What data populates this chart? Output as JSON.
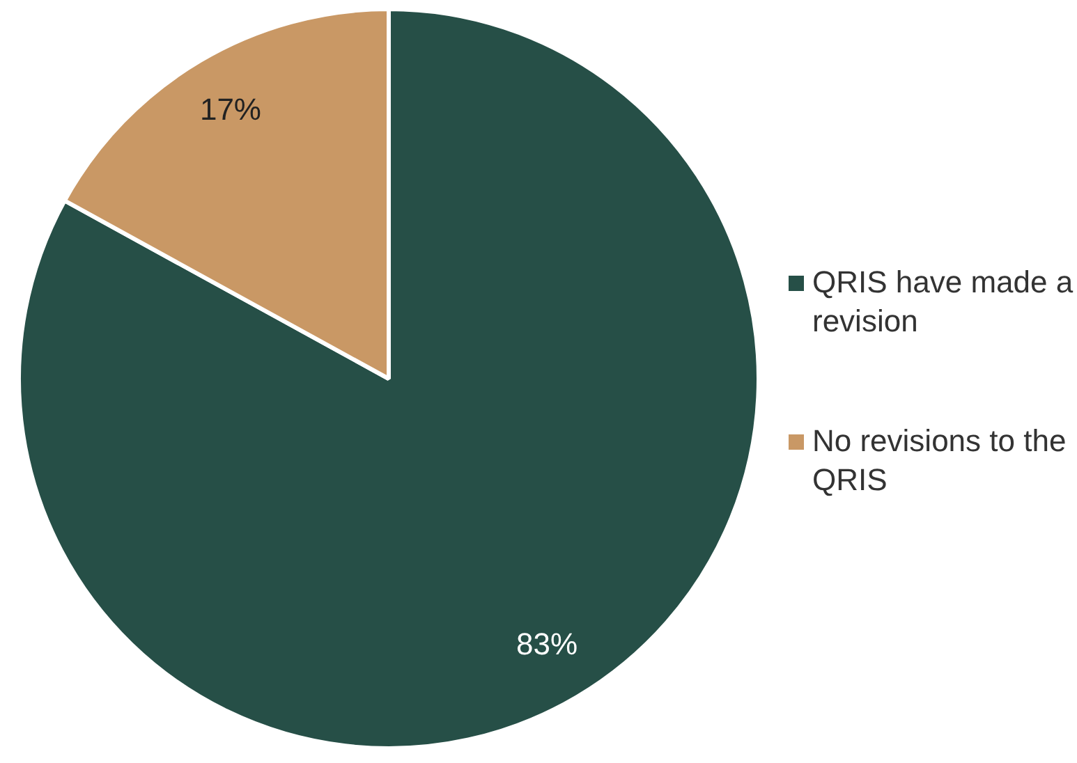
{
  "chart_data": {
    "type": "pie",
    "categories": [
      "QRIS have made a revision",
      "No revisions to the QRIS"
    ],
    "values": [
      83,
      17
    ],
    "colors": [
      "#264f47",
      "#c99865"
    ],
    "value_labels": [
      "83%",
      "17%"
    ],
    "legend": "right"
  }
}
